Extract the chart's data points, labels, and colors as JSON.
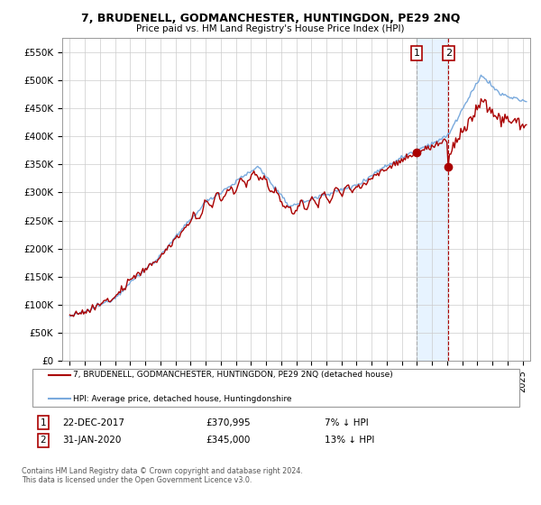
{
  "title": "7, BRUDENELL, GODMANCHESTER, HUNTINGDON, PE29 2NQ",
  "subtitle": "Price paid vs. HM Land Registry's House Price Index (HPI)",
  "ylabel_ticks": [
    "£0",
    "£50K",
    "£100K",
    "£150K",
    "£200K",
    "£250K",
    "£300K",
    "£350K",
    "£400K",
    "£450K",
    "£500K",
    "£550K"
  ],
  "ytick_vals": [
    0,
    50000,
    100000,
    150000,
    200000,
    250000,
    300000,
    350000,
    400000,
    450000,
    500000,
    550000
  ],
  "ylim": [
    0,
    575000
  ],
  "xlim_start": 1994.5,
  "xlim_end": 2025.5,
  "sale1_x": 2017.97,
  "sale1_y": 370995,
  "sale2_x": 2020.08,
  "sale2_y": 345000,
  "legend_line1": "7, BRUDENELL, GODMANCHESTER, HUNTINGDON, PE29 2NQ (detached house)",
  "legend_line2": "HPI: Average price, detached house, Huntingdonshire",
  "line_color_red": "#aa0000",
  "line_color_blue": "#7aaadd",
  "shade_color": "#ddeeff",
  "background_color": "#ffffff",
  "grid_color": "#cccccc",
  "footnote": "Contains HM Land Registry data © Crown copyright and database right 2024.\nThis data is licensed under the Open Government Licence v3.0."
}
